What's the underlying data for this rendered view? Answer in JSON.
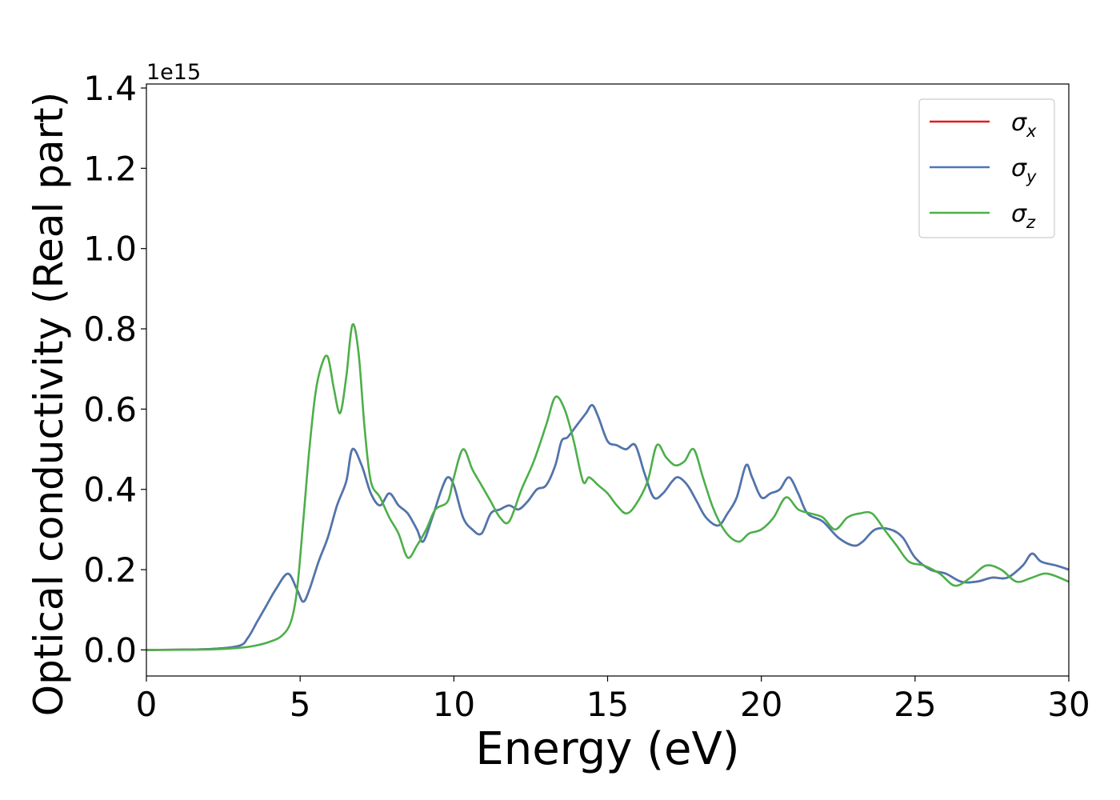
{
  "chart_data": {
    "type": "line",
    "xlabel": "Energy (eV)",
    "ylabel": "Optical conductivity (Real part)",
    "offset_text": "1e15",
    "xlim": [
      0,
      30
    ],
    "ylim": [
      -0.065,
      1.41
    ],
    "xticks": [
      0,
      5,
      10,
      15,
      20,
      25,
      30
    ],
    "yticks": [
      0.0,
      0.2,
      0.4,
      0.6,
      0.8,
      1.0,
      1.2,
      1.4
    ],
    "ytick_labels": [
      "0.0",
      "0.2",
      "0.4",
      "0.6",
      "0.8",
      "1.0",
      "1.2",
      "1.4"
    ],
    "legend": {
      "position": "upper right",
      "entries": [
        {
          "symbol": "σ",
          "sub": "x",
          "color": "#e41a1c"
        },
        {
          "symbol": "σ",
          "sub": "y",
          "color": "#4a78b2"
        },
        {
          "symbol": "σ",
          "sub": "z",
          "color": "#4daf4a"
        }
      ]
    },
    "series": [
      {
        "id": "sigma_x",
        "color": "#e41a1c",
        "hidden_under": "sigma_y",
        "points": [
          [
            0,
            0
          ],
          [
            2,
            0.002
          ],
          [
            3,
            0.01
          ],
          [
            3.3,
            0.03
          ],
          [
            3.6,
            0.07
          ],
          [
            3.9,
            0.11
          ],
          [
            4.2,
            0.15
          ],
          [
            4.6,
            0.19
          ],
          [
            4.9,
            0.15
          ],
          [
            5.1,
            0.12
          ],
          [
            5.3,
            0.15
          ],
          [
            5.6,
            0.22
          ],
          [
            5.9,
            0.28
          ],
          [
            6.2,
            0.36
          ],
          [
            6.5,
            0.42
          ],
          [
            6.7,
            0.5
          ],
          [
            7.0,
            0.46
          ],
          [
            7.3,
            0.39
          ],
          [
            7.6,
            0.36
          ],
          [
            7.9,
            0.39
          ],
          [
            8.2,
            0.36
          ],
          [
            8.5,
            0.34
          ],
          [
            8.8,
            0.3
          ],
          [
            9.0,
            0.27
          ],
          [
            9.3,
            0.33
          ],
          [
            9.6,
            0.4
          ],
          [
            9.8,
            0.43
          ],
          [
            10.0,
            0.41
          ],
          [
            10.3,
            0.33
          ],
          [
            10.6,
            0.3
          ],
          [
            10.9,
            0.29
          ],
          [
            11.2,
            0.34
          ],
          [
            11.5,
            0.35
          ],
          [
            11.8,
            0.36
          ],
          [
            12.1,
            0.35
          ],
          [
            12.4,
            0.37
          ],
          [
            12.7,
            0.4
          ],
          [
            13.0,
            0.41
          ],
          [
            13.3,
            0.46
          ],
          [
            13.5,
            0.52
          ],
          [
            13.7,
            0.53
          ],
          [
            14.0,
            0.56
          ],
          [
            14.3,
            0.59
          ],
          [
            14.5,
            0.61
          ],
          [
            14.7,
            0.58
          ],
          [
            15.0,
            0.52
          ],
          [
            15.3,
            0.51
          ],
          [
            15.6,
            0.5
          ],
          [
            15.9,
            0.51
          ],
          [
            16.2,
            0.44
          ],
          [
            16.5,
            0.38
          ],
          [
            16.8,
            0.39
          ],
          [
            17.1,
            0.42
          ],
          [
            17.3,
            0.43
          ],
          [
            17.6,
            0.41
          ],
          [
            17.9,
            0.37
          ],
          [
            18.2,
            0.33
          ],
          [
            18.6,
            0.31
          ],
          [
            18.9,
            0.34
          ],
          [
            19.2,
            0.38
          ],
          [
            19.5,
            0.46
          ],
          [
            19.7,
            0.43
          ],
          [
            20.0,
            0.38
          ],
          [
            20.3,
            0.39
          ],
          [
            20.6,
            0.4
          ],
          [
            20.9,
            0.43
          ],
          [
            21.2,
            0.39
          ],
          [
            21.5,
            0.34
          ],
          [
            22.0,
            0.32
          ],
          [
            22.5,
            0.28
          ],
          [
            23.0,
            0.26
          ],
          [
            23.3,
            0.27
          ],
          [
            23.7,
            0.3
          ],
          [
            24.2,
            0.3
          ],
          [
            24.6,
            0.28
          ],
          [
            25.0,
            0.23
          ],
          [
            25.5,
            0.2
          ],
          [
            26.0,
            0.19
          ],
          [
            26.5,
            0.17
          ],
          [
            27.0,
            0.17
          ],
          [
            27.5,
            0.18
          ],
          [
            28.0,
            0.18
          ],
          [
            28.5,
            0.21
          ],
          [
            28.8,
            0.24
          ],
          [
            29.1,
            0.22
          ],
          [
            29.6,
            0.21
          ],
          [
            30.0,
            0.2
          ]
        ]
      },
      {
        "id": "sigma_y",
        "color": "#4a78b2",
        "points": [
          [
            0,
            0
          ],
          [
            2,
            0.002
          ],
          [
            3,
            0.01
          ],
          [
            3.3,
            0.03
          ],
          [
            3.6,
            0.07
          ],
          [
            3.9,
            0.11
          ],
          [
            4.2,
            0.15
          ],
          [
            4.6,
            0.19
          ],
          [
            4.9,
            0.15
          ],
          [
            5.1,
            0.12
          ],
          [
            5.3,
            0.15
          ],
          [
            5.6,
            0.22
          ],
          [
            5.9,
            0.28
          ],
          [
            6.2,
            0.36
          ],
          [
            6.5,
            0.42
          ],
          [
            6.7,
            0.5
          ],
          [
            7.0,
            0.46
          ],
          [
            7.3,
            0.39
          ],
          [
            7.6,
            0.36
          ],
          [
            7.9,
            0.39
          ],
          [
            8.2,
            0.36
          ],
          [
            8.5,
            0.34
          ],
          [
            8.8,
            0.3
          ],
          [
            9.0,
            0.27
          ],
          [
            9.3,
            0.33
          ],
          [
            9.6,
            0.4
          ],
          [
            9.8,
            0.43
          ],
          [
            10.0,
            0.41
          ],
          [
            10.3,
            0.33
          ],
          [
            10.6,
            0.3
          ],
          [
            10.9,
            0.29
          ],
          [
            11.2,
            0.34
          ],
          [
            11.5,
            0.35
          ],
          [
            11.8,
            0.36
          ],
          [
            12.1,
            0.35
          ],
          [
            12.4,
            0.37
          ],
          [
            12.7,
            0.4
          ],
          [
            13.0,
            0.41
          ],
          [
            13.3,
            0.46
          ],
          [
            13.5,
            0.52
          ],
          [
            13.7,
            0.53
          ],
          [
            14.0,
            0.56
          ],
          [
            14.3,
            0.59
          ],
          [
            14.5,
            0.61
          ],
          [
            14.7,
            0.58
          ],
          [
            15.0,
            0.52
          ],
          [
            15.3,
            0.51
          ],
          [
            15.6,
            0.5
          ],
          [
            15.9,
            0.51
          ],
          [
            16.2,
            0.44
          ],
          [
            16.5,
            0.38
          ],
          [
            16.8,
            0.39
          ],
          [
            17.1,
            0.42
          ],
          [
            17.3,
            0.43
          ],
          [
            17.6,
            0.41
          ],
          [
            17.9,
            0.37
          ],
          [
            18.2,
            0.33
          ],
          [
            18.6,
            0.31
          ],
          [
            18.9,
            0.34
          ],
          [
            19.2,
            0.38
          ],
          [
            19.5,
            0.46
          ],
          [
            19.7,
            0.43
          ],
          [
            20.0,
            0.38
          ],
          [
            20.3,
            0.39
          ],
          [
            20.6,
            0.4
          ],
          [
            20.9,
            0.43
          ],
          [
            21.2,
            0.39
          ],
          [
            21.5,
            0.34
          ],
          [
            22.0,
            0.32
          ],
          [
            22.5,
            0.28
          ],
          [
            23.0,
            0.26
          ],
          [
            23.3,
            0.27
          ],
          [
            23.7,
            0.3
          ],
          [
            24.2,
            0.3
          ],
          [
            24.6,
            0.28
          ],
          [
            25.0,
            0.23
          ],
          [
            25.5,
            0.2
          ],
          [
            26.0,
            0.19
          ],
          [
            26.5,
            0.17
          ],
          [
            27.0,
            0.17
          ],
          [
            27.5,
            0.18
          ],
          [
            28.0,
            0.18
          ],
          [
            28.5,
            0.21
          ],
          [
            28.8,
            0.24
          ],
          [
            29.1,
            0.22
          ],
          [
            29.6,
            0.21
          ],
          [
            30.0,
            0.2
          ]
        ]
      },
      {
        "id": "sigma_z",
        "color": "#4daf4a",
        "points": [
          [
            0,
            0
          ],
          [
            2,
            0.001
          ],
          [
            3,
            0.005
          ],
          [
            3.5,
            0.01
          ],
          [
            4.0,
            0.02
          ],
          [
            4.4,
            0.035
          ],
          [
            4.7,
            0.07
          ],
          [
            4.9,
            0.15
          ],
          [
            5.1,
            0.32
          ],
          [
            5.3,
            0.5
          ],
          [
            5.5,
            0.64
          ],
          [
            5.7,
            0.71
          ],
          [
            5.9,
            0.73
          ],
          [
            6.1,
            0.65
          ],
          [
            6.3,
            0.59
          ],
          [
            6.5,
            0.68
          ],
          [
            6.7,
            0.81
          ],
          [
            6.9,
            0.74
          ],
          [
            7.1,
            0.55
          ],
          [
            7.3,
            0.42
          ],
          [
            7.6,
            0.38
          ],
          [
            7.9,
            0.33
          ],
          [
            8.2,
            0.29
          ],
          [
            8.5,
            0.23
          ],
          [
            8.8,
            0.26
          ],
          [
            9.1,
            0.3
          ],
          [
            9.4,
            0.35
          ],
          [
            9.8,
            0.37
          ],
          [
            10.0,
            0.43
          ],
          [
            10.3,
            0.5
          ],
          [
            10.6,
            0.45
          ],
          [
            10.9,
            0.41
          ],
          [
            11.2,
            0.37
          ],
          [
            11.5,
            0.33
          ],
          [
            11.8,
            0.32
          ],
          [
            12.2,
            0.4
          ],
          [
            12.6,
            0.47
          ],
          [
            13.0,
            0.56
          ],
          [
            13.3,
            0.63
          ],
          [
            13.6,
            0.6
          ],
          [
            13.9,
            0.52
          ],
          [
            14.2,
            0.42
          ],
          [
            14.4,
            0.43
          ],
          [
            14.7,
            0.41
          ],
          [
            15.0,
            0.39
          ],
          [
            15.3,
            0.36
          ],
          [
            15.6,
            0.34
          ],
          [
            15.9,
            0.36
          ],
          [
            16.3,
            0.42
          ],
          [
            16.6,
            0.51
          ],
          [
            16.9,
            0.48
          ],
          [
            17.2,
            0.46
          ],
          [
            17.5,
            0.47
          ],
          [
            17.8,
            0.5
          ],
          [
            18.1,
            0.43
          ],
          [
            18.4,
            0.36
          ],
          [
            18.7,
            0.31
          ],
          [
            19.0,
            0.28
          ],
          [
            19.3,
            0.27
          ],
          [
            19.6,
            0.29
          ],
          [
            20.0,
            0.3
          ],
          [
            20.4,
            0.33
          ],
          [
            20.8,
            0.38
          ],
          [
            21.2,
            0.35
          ],
          [
            21.6,
            0.34
          ],
          [
            22.0,
            0.33
          ],
          [
            22.4,
            0.3
          ],
          [
            22.8,
            0.33
          ],
          [
            23.2,
            0.34
          ],
          [
            23.6,
            0.34
          ],
          [
            24.0,
            0.3
          ],
          [
            24.4,
            0.26
          ],
          [
            24.8,
            0.22
          ],
          [
            25.3,
            0.21
          ],
          [
            25.8,
            0.19
          ],
          [
            26.3,
            0.16
          ],
          [
            26.8,
            0.18
          ],
          [
            27.3,
            0.21
          ],
          [
            27.8,
            0.2
          ],
          [
            28.3,
            0.17
          ],
          [
            28.8,
            0.18
          ],
          [
            29.3,
            0.19
          ],
          [
            30.0,
            0.17
          ]
        ]
      }
    ]
  }
}
